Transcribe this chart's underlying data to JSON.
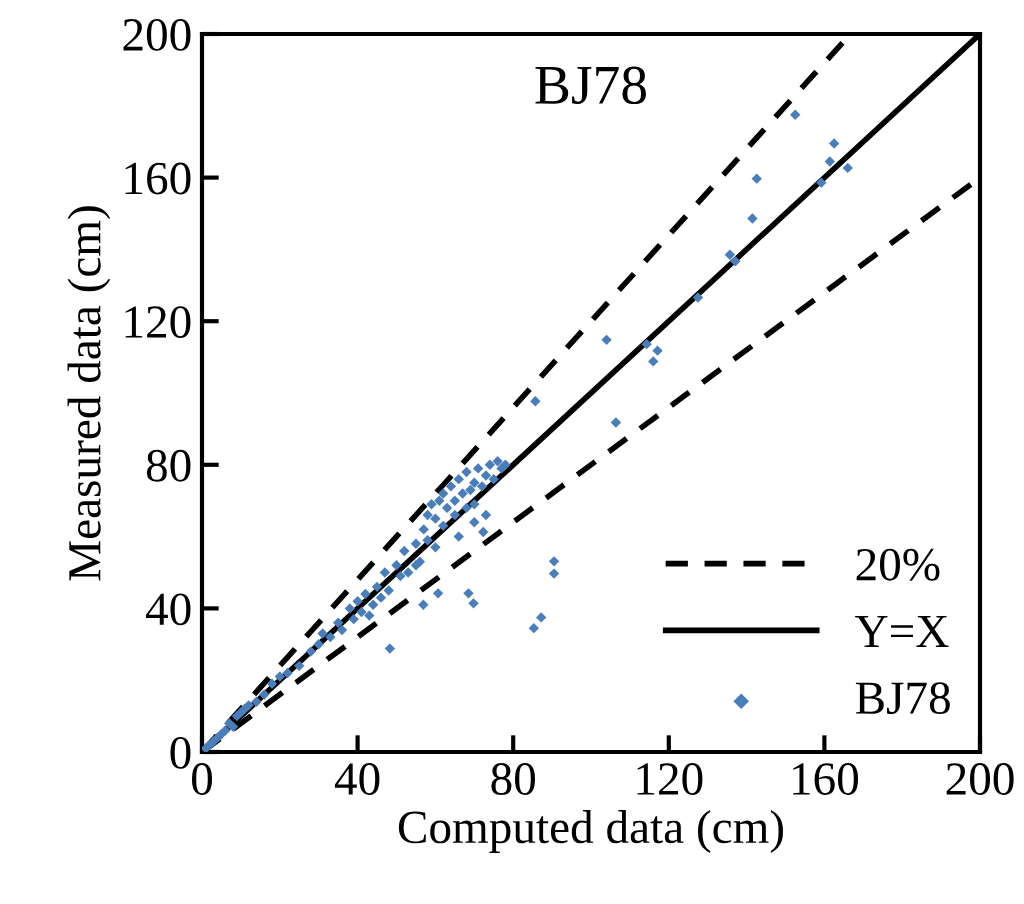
{
  "chart_data": {
    "type": "scatter",
    "title": "BJ78",
    "xlabel": "Computed data (cm)",
    "ylabel": "Measured data (cm)",
    "xlim": [
      0,
      200
    ],
    "ylim": [
      0,
      200
    ],
    "xticks": [
      0,
      40,
      80,
      120,
      160,
      200
    ],
    "yticks": [
      0,
      40,
      80,
      120,
      160,
      200
    ],
    "legend": "bottom right",
    "series": [
      {
        "name": "20%",
        "type": "line",
        "line_style": "dashed",
        "color": "#000000",
        "x": [
          0,
          166.7
        ],
        "values": [
          0,
          200
        ]
      },
      {
        "type": "line",
        "line_style": "dashed",
        "color": "#000000",
        "x": [
          0,
          200
        ],
        "values": [
          0,
          160
        ]
      },
      {
        "name": "Y=X",
        "type": "line",
        "line_style": "solid",
        "color": "#000000",
        "x": [
          0,
          200
        ],
        "values": [
          0,
          200
        ]
      },
      {
        "name": "BJ78",
        "marker": "diamond",
        "color": "#4a7ebb",
        "x": [
          1,
          2,
          3,
          4,
          5,
          6,
          7,
          8,
          9,
          10,
          11,
          12,
          14,
          16,
          18,
          20,
          22,
          25,
          28,
          30,
          31,
          33,
          35,
          36,
          38,
          39,
          40,
          41,
          42,
          43,
          44,
          45,
          46,
          47,
          48,
          50,
          51,
          52,
          53,
          55,
          56,
          57,
          58,
          59,
          60,
          61,
          62,
          63,
          64,
          65,
          66,
          67,
          68,
          69,
          70,
          71,
          72,
          73,
          74,
          75,
          76,
          77,
          78,
          62,
          65,
          68,
          70,
          58,
          55,
          60,
          66,
          70,
          73,
          48.3,
          56.9,
          68.5,
          69.8,
          72.3,
          60.7,
          85.7,
          87.2,
          85.3,
          90.5,
          90.5,
          106.4,
          104,
          114.3,
          117.1,
          116,
          127.5,
          135.7,
          137.1,
          141.5,
          142.6,
          159.2,
          161.4,
          162.5,
          166,
          152.5
        ],
        "values": [
          1,
          2,
          3,
          4,
          5,
          6,
          8,
          7,
          10,
          11,
          12,
          13,
          14,
          16,
          19,
          21,
          22,
          24,
          28,
          30,
          33,
          32,
          36,
          34,
          40,
          37,
          42,
          39,
          44,
          38,
          41,
          46,
          43,
          50,
          45,
          52,
          49,
          56,
          50,
          58,
          53,
          62,
          66,
          69,
          65,
          70,
          72,
          68,
          74,
          70,
          76,
          72,
          78,
          73,
          75,
          79,
          74,
          77,
          80,
          76,
          81,
          79,
          80,
          63,
          66,
          68,
          69,
          59,
          52,
          57,
          60,
          64,
          66,
          28.8,
          41,
          44.2,
          41.4,
          61.3,
          44.2,
          97.7,
          37.5,
          34.5,
          53.1,
          49.7,
          91.8,
          114.8,
          113.6,
          111.8,
          108.8,
          126.6,
          138.5,
          136.7,
          148.6,
          159.7,
          158.6,
          164.5,
          169.5,
          162.7,
          177.5
        ]
      }
    ]
  }
}
